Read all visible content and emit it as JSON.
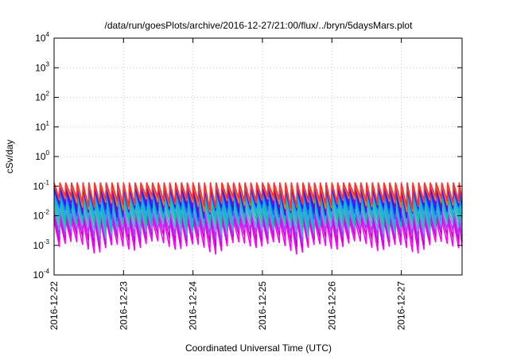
{
  "chart_data": {
    "type": "line",
    "title": "/data/run/goesPlots/archive/2016-12-27/21:00/flux/../bryn/5daysMars.plot",
    "xlabel": "Coordinated Universal Time (UTC)",
    "ylabel": "cSv/day",
    "yscale": "log",
    "ylim": [
      0.0001,
      10000
    ],
    "xlim": [
      "2016-12-22T00:00",
      "2016-12-27T21:00"
    ],
    "y_ticks": [
      {
        "base": "10",
        "exp": "-4",
        "value": 0.0001
      },
      {
        "base": "10",
        "exp": "-3",
        "value": 0.001
      },
      {
        "base": "10",
        "exp": "-2",
        "value": 0.01
      },
      {
        "base": "10",
        "exp": "-1",
        "value": 0.1
      },
      {
        "base": "10",
        "exp": "0",
        "value": 1
      },
      {
        "base": "10",
        "exp": "1",
        "value": 10
      },
      {
        "base": "10",
        "exp": "2",
        "value": 100
      },
      {
        "base": "10",
        "exp": "3",
        "value": 1000
      },
      {
        "base": "10",
        "exp": "4",
        "value": 10000
      }
    ],
    "x_ticks": [
      "2016-12-22",
      "2016-12-23",
      "2016-12-24",
      "2016-12-25",
      "2016-12-26",
      "2016-12-27"
    ],
    "grid": true,
    "sawtooth": {
      "period_hours": 2,
      "peak_values": [
        0.13,
        0.12,
        0.1,
        0.085,
        0.07,
        0.055,
        0.04,
        0.028,
        0.02,
        0.014,
        0.01,
        0.007
      ],
      "trough_values": [
        0.04,
        0.032,
        0.026,
        0.02,
        0.016,
        0.012,
        0.009,
        0.0065,
        0.0045,
        0.003,
        0.002,
        0.0012
      ]
    },
    "series_colors": [
      "#ff3030",
      "#e08020",
      "#9000c0",
      "#2020ff",
      "#2060ff",
      "#30a0ff",
      "#00c0c0",
      "#20c0a0",
      "#60a0e0",
      "#a040ff",
      "#d000d0",
      "#ff00ff"
    ]
  }
}
